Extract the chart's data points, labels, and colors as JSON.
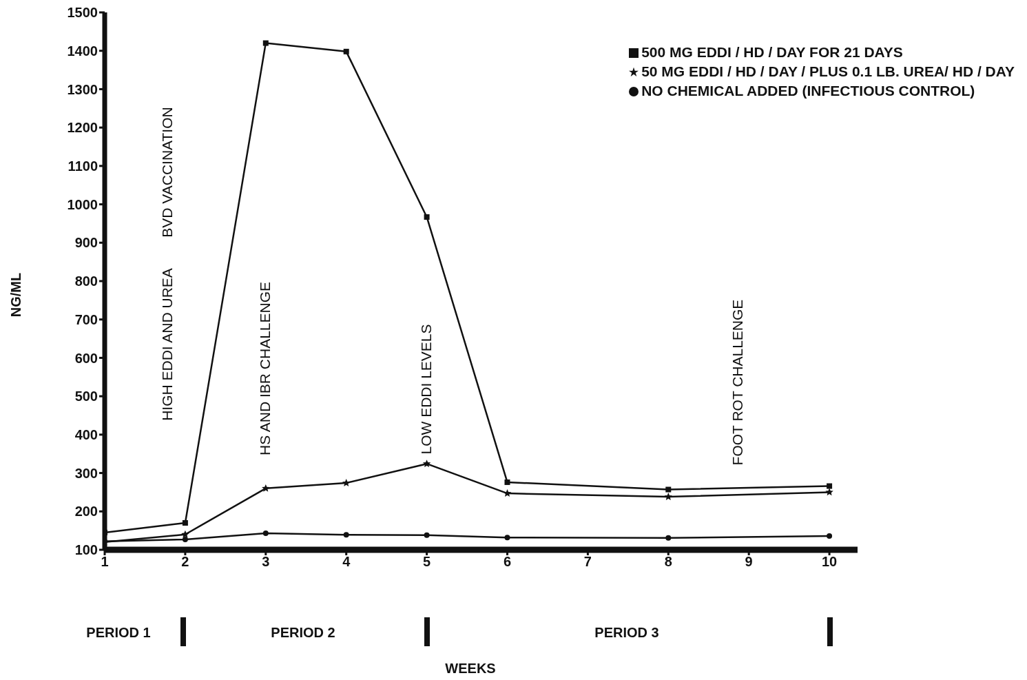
{
  "chart_data": {
    "type": "line",
    "ylabel": "NG/ML",
    "xlim": [
      1,
      10.35
    ],
    "xticks": [
      1,
      2,
      3,
      4,
      5,
      6,
      7,
      8,
      9,
      10
    ],
    "ylim": [
      100,
      1500
    ],
    "yticks": [
      100,
      200,
      300,
      400,
      500,
      600,
      700,
      800,
      900,
      1000,
      1100,
      1200,
      1300,
      1400,
      1500
    ],
    "grid": false,
    "legend": "top right",
    "series": [
      {
        "name": "500 MG EDDI / HD / DAY FOR 21 DAYS",
        "color": "#111111",
        "marker": "square",
        "x": [
          1,
          2,
          3,
          4,
          5,
          6,
          8,
          10
        ],
        "values": [
          145,
          170,
          1420,
          1398,
          967,
          276,
          257,
          266
        ]
      },
      {
        "name": "50 MG EDDI / HD / DAY / PLUS 0.1 LB. UREA/ HD / DAY",
        "color": "#111111",
        "marker": "star",
        "x": [
          1,
          2,
          3,
          4,
          5,
          6,
          8,
          10
        ],
        "values": [
          120,
          140,
          260,
          274,
          324,
          247,
          238,
          250
        ]
      },
      {
        "name": "NO CHEMICAL ADDED (INFECTIOUS CONTROL)",
        "color": "#111111",
        "marker": "circle",
        "x": [
          1,
          2,
          3,
          4,
          5,
          6,
          8,
          10
        ],
        "values": [
          122,
          127,
          143,
          139,
          138,
          132,
          131,
          136
        ]
      }
    ],
    "annotations": [
      "HIGH EDDI AND UREA",
      "BVD VACCINATION",
      "HS AND IBR CHALLENGE",
      "LOW EDDI LEVELS",
      "FOOT ROT CHALLENGE",
      "PERIOD 1",
      "PERIOD 2",
      "PERIOD 3",
      "WEEKS"
    ]
  }
}
